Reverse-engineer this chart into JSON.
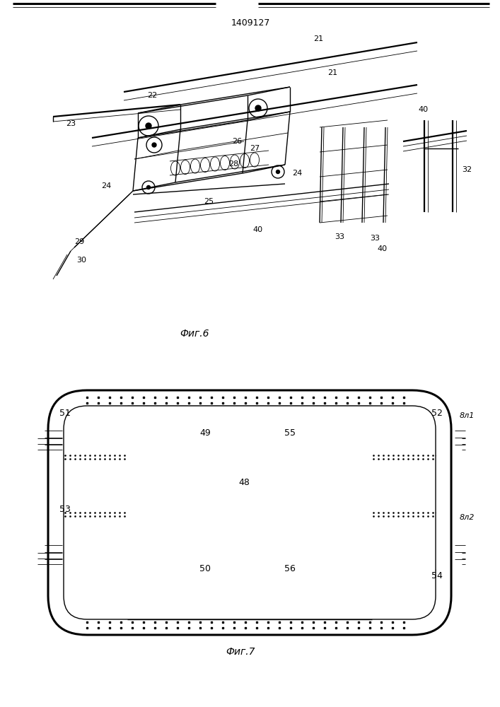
{
  "title": "1409127",
  "fig6_caption": "Фиг.6",
  "fig7_caption": "Фиг.7",
  "bg_color": "#ffffff",
  "line_color": "#000000"
}
